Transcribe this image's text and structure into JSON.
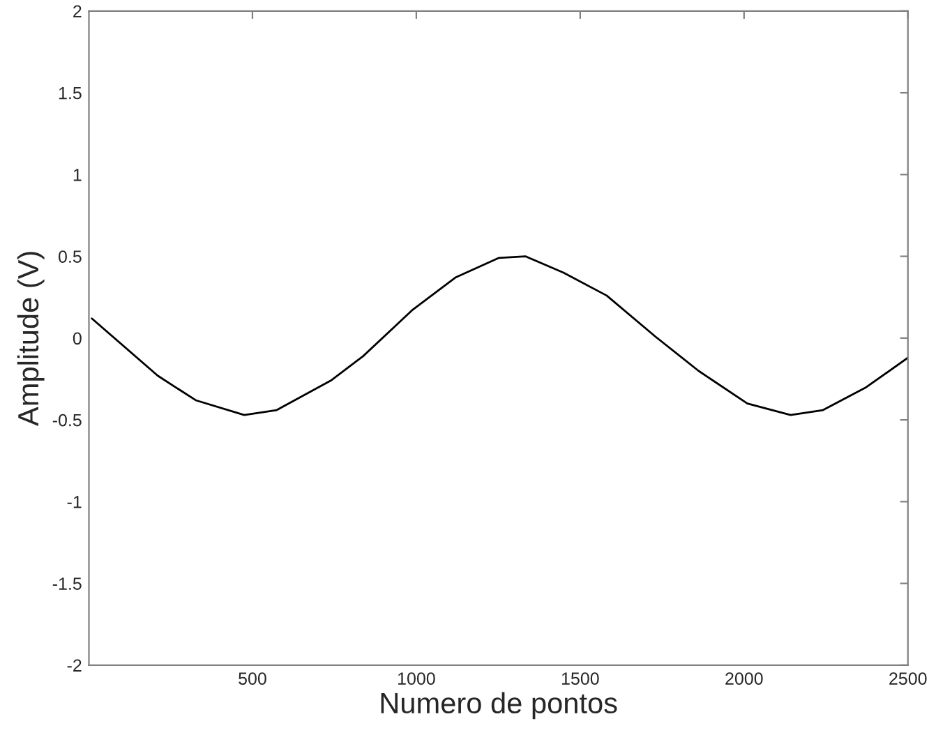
{
  "chart_data": {
    "type": "line",
    "xlabel": "Numero de pontos",
    "ylabel": "Amplitude (V)",
    "xlim": [
      1,
      2500
    ],
    "xticks": [
      500,
      1000,
      1500,
      2000,
      2500
    ],
    "ylim": [
      -2,
      2
    ],
    "yticks": [
      -2,
      -1.5,
      -1,
      -0.5,
      0,
      0.5,
      1,
      1.5,
      2
    ],
    "grid": false,
    "legend": false,
    "marker": "none",
    "line_style": "solid",
    "series": [
      {
        "color": "#000000",
        "x": [
          10,
          211,
          327,
          475,
          574,
          739,
          838,
          987,
          1119,
          1251,
          1333,
          1449,
          1581,
          1729,
          1861,
          2010,
          2142,
          2241,
          2373,
          2500
        ],
        "values": [
          0.12,
          -0.23,
          -0.38,
          -0.47,
          -0.44,
          -0.26,
          -0.11,
          0.17,
          0.37,
          0.49,
          0.5,
          0.4,
          0.26,
          0.01,
          -0.2,
          -0.4,
          -0.47,
          -0.44,
          -0.3,
          -0.12
        ]
      }
    ]
  }
}
